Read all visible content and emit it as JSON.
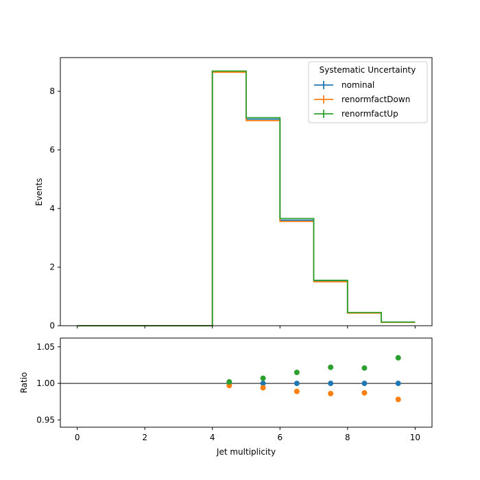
{
  "chart_data": [
    {
      "panel": "main",
      "type": "step",
      "ylabel": "Events",
      "xlim": [
        -0.5,
        10.5
      ],
      "ylim": [
        0,
        9.15
      ],
      "x_ticks": [
        0,
        2,
        4,
        6,
        8,
        10
      ],
      "y_ticks": [
        0,
        2,
        4,
        6,
        8
      ],
      "bin_edges": [
        0,
        1,
        2,
        3,
        4,
        5,
        6,
        7,
        8,
        9,
        10
      ],
      "legend": {
        "title": "Systematic Uncertainty",
        "placement": "upper right"
      },
      "series": [
        {
          "name": "nominal",
          "color": "#1f77b4",
          "values": [
            0,
            0,
            0,
            0,
            8.68,
            7.05,
            3.6,
            1.52,
            0.44,
            0.12
          ]
        },
        {
          "name": "renormfactDown",
          "color": "#ff7f0e",
          "values": [
            0,
            0,
            0,
            0,
            8.65,
            7.0,
            3.56,
            1.5,
            0.43,
            0.115
          ]
        },
        {
          "name": "renormfactUp",
          "color": "#2ca02c",
          "values": [
            0,
            0,
            0,
            0,
            8.69,
            7.1,
            3.66,
            1.55,
            0.45,
            0.125
          ]
        }
      ]
    },
    {
      "panel": "ratio",
      "type": "scatter",
      "xlabel": "Jet multiplicity",
      "ylabel": "Ratio",
      "xlim": [
        -0.5,
        10.5
      ],
      "ylim": [
        0.94,
        1.062
      ],
      "x_ticks": [
        0,
        2,
        4,
        6,
        8,
        10
      ],
      "y_ticks": [
        0.95,
        1.0,
        1.05
      ],
      "y_tick_labels": [
        "0.95",
        "1.00",
        "1.05"
      ],
      "reference_line": 1.0,
      "x": [
        4.5,
        5.5,
        6.5,
        7.5,
        8.5,
        9.5
      ],
      "series": [
        {
          "name": "nominal",
          "color": "#1f77b4",
          "values": [
            1.0,
            1.0,
            1.0,
            1.0,
            1.0,
            1.0
          ]
        },
        {
          "name": "renormfactDown",
          "color": "#ff7f0e",
          "values": [
            0.997,
            0.994,
            0.989,
            0.986,
            0.987,
            0.978
          ]
        },
        {
          "name": "renormfactUp",
          "color": "#2ca02c",
          "values": [
            1.002,
            1.007,
            1.015,
            1.022,
            1.021,
            1.035
          ]
        }
      ]
    }
  ]
}
